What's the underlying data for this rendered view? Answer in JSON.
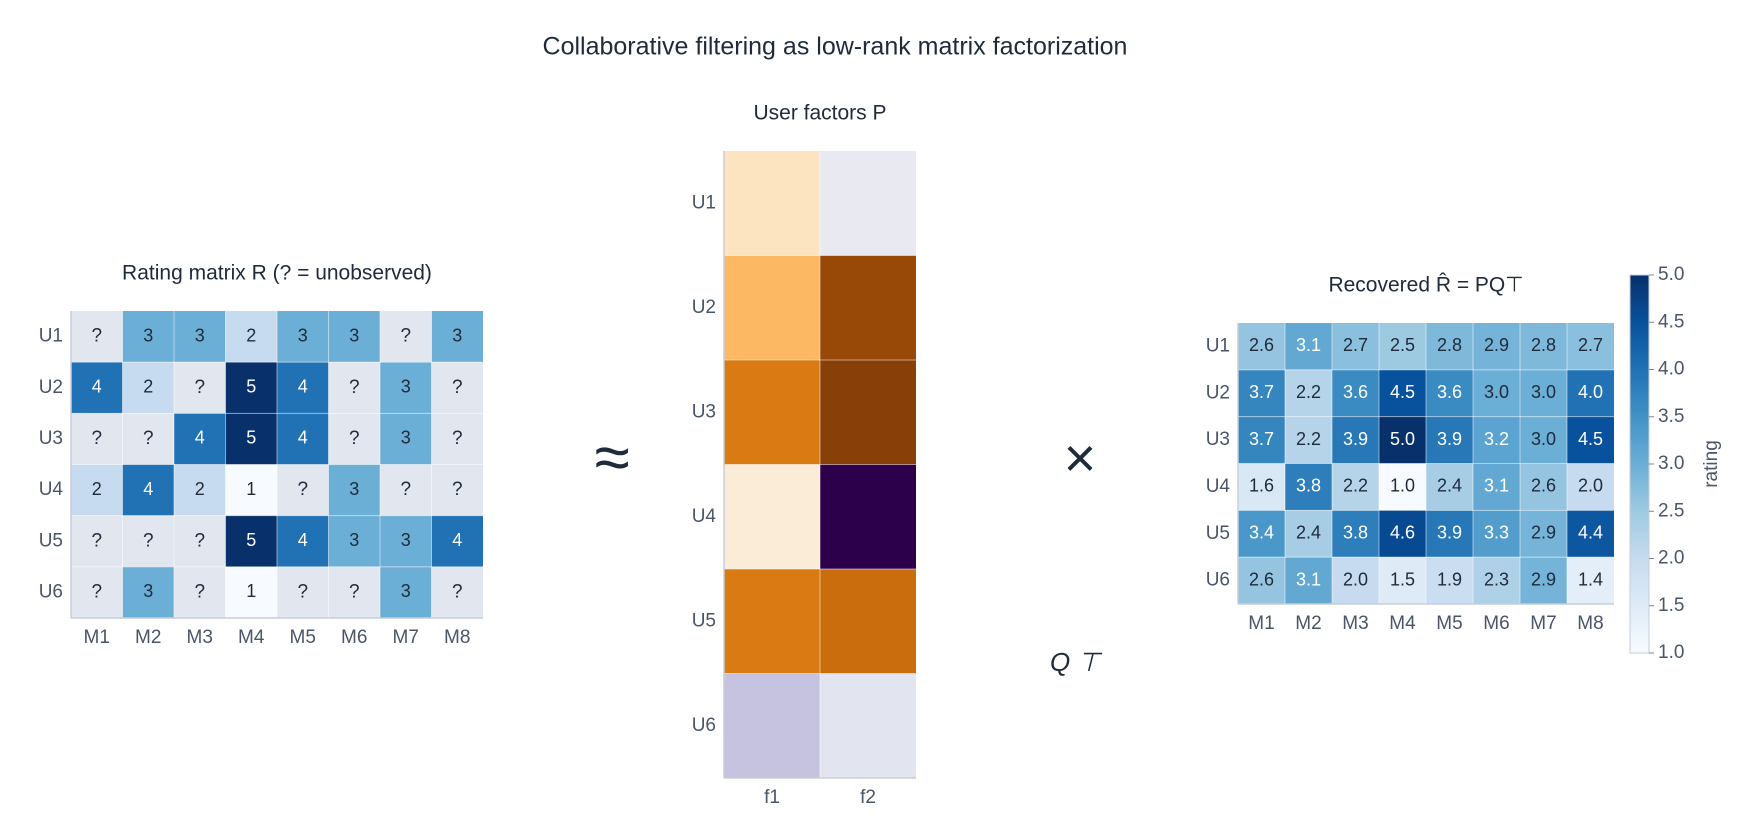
{
  "title": "Collaborative filtering as low-rank matrix factorization",
  "annotations": [
    "≈",
    "×",
    "Q ⊤"
  ],
  "chart_data": [
    {
      "type": "heatmap",
      "title": "Rating matrix R (? = unobserved)",
      "colormap": "Blues",
      "clim": [
        1,
        5
      ],
      "missing_label": "?",
      "x_categories": [
        "M1",
        "M2",
        "M3",
        "M4",
        "M5",
        "M6",
        "M7",
        "M8"
      ],
      "y_categories": [
        "U1",
        "U2",
        "U3",
        "U4",
        "U5",
        "U6"
      ],
      "values": [
        [
          null,
          3,
          3,
          2,
          3,
          3,
          null,
          3
        ],
        [
          4,
          2,
          null,
          5,
          4,
          null,
          3,
          null
        ],
        [
          null,
          null,
          4,
          5,
          4,
          null,
          3,
          null
        ],
        [
          2,
          4,
          2,
          1,
          null,
          3,
          null,
          null
        ],
        [
          null,
          null,
          null,
          5,
          4,
          3,
          3,
          4
        ],
        [
          null,
          3,
          null,
          1,
          null,
          null,
          3,
          null
        ]
      ]
    },
    {
      "type": "heatmap",
      "title": "User factors P",
      "colormap": "PuOr",
      "clim": [
        -1.5,
        1.5
      ],
      "x_categories": [
        "f1",
        "f2"
      ],
      "y_categories": [
        "U1",
        "U2",
        "U3",
        "U4",
        "U5",
        "U6"
      ],
      "values": [
        [
          -0.25,
          0.15
        ],
        [
          -0.6,
          -1.35
        ],
        [
          -0.95,
          -1.45
        ],
        [
          -0.15,
          1.5
        ],
        [
          -0.95,
          -1.05
        ],
        [
          0.45,
          0.2
        ]
      ]
    },
    {
      "type": "heatmap",
      "title": "Recovered R̂ = PQ⊤",
      "colormap": "Blues",
      "clim": [
        1,
        5
      ],
      "x_categories": [
        "M1",
        "M2",
        "M3",
        "M4",
        "M5",
        "M6",
        "M7",
        "M8"
      ],
      "y_categories": [
        "U1",
        "U2",
        "U3",
        "U4",
        "U5",
        "U6"
      ],
      "values": [
        [
          2.6,
          3.1,
          2.7,
          2.5,
          2.8,
          2.9,
          2.8,
          2.7
        ],
        [
          3.7,
          2.2,
          3.6,
          4.5,
          3.6,
          3.0,
          3.0,
          4.0
        ],
        [
          3.7,
          2.2,
          3.9,
          5.0,
          3.9,
          3.2,
          3.0,
          4.5
        ],
        [
          1.6,
          3.8,
          2.2,
          1.0,
          2.4,
          3.1,
          2.6,
          2.0
        ],
        [
          3.4,
          2.4,
          3.8,
          4.6,
          3.9,
          3.3,
          2.9,
          4.4
        ],
        [
          2.6,
          3.1,
          2.0,
          1.5,
          1.9,
          2.3,
          2.9,
          1.4
        ]
      ],
      "value_labels": [
        [
          "2.6",
          "3.1",
          "2.7",
          "2.5",
          "2.8",
          "2.9",
          "2.8",
          "2.7"
        ],
        [
          "3.7",
          "2.2",
          "3.6",
          "4.5",
          "3.6",
          "3.0",
          "3.0",
          "4.0"
        ],
        [
          "3.7",
          "2.2",
          "3.9",
          "5.0",
          "3.9",
          "3.2",
          "3.0",
          "4.5"
        ],
        [
          "1.6",
          "3.8",
          "2.2",
          "1.0",
          "2.4",
          "3.1",
          "2.6",
          "2.0"
        ],
        [
          "3.4",
          "2.4",
          "3.8",
          "4.6",
          "3.9",
          "3.3",
          "2.9",
          "4.4"
        ],
        [
          "2.6",
          "3.1",
          "2.0",
          "1.5",
          "1.9",
          "2.3",
          "2.9",
          "1.4"
        ]
      ],
      "colorbar": {
        "label": "rating",
        "ticks": [
          {
            "value": 1,
            "label": "1.0"
          },
          {
            "value": 1.5,
            "label": "1.5"
          },
          {
            "value": 2,
            "label": "2.0"
          },
          {
            "value": 2.5,
            "label": "2.5"
          },
          {
            "value": 3,
            "label": "3.0"
          },
          {
            "value": 3.5,
            "label": "3.5"
          },
          {
            "value": 4,
            "label": "4.0"
          },
          {
            "value": 4.5,
            "label": "4.5"
          },
          {
            "value": 5,
            "label": "5.0"
          }
        ]
      }
    }
  ]
}
